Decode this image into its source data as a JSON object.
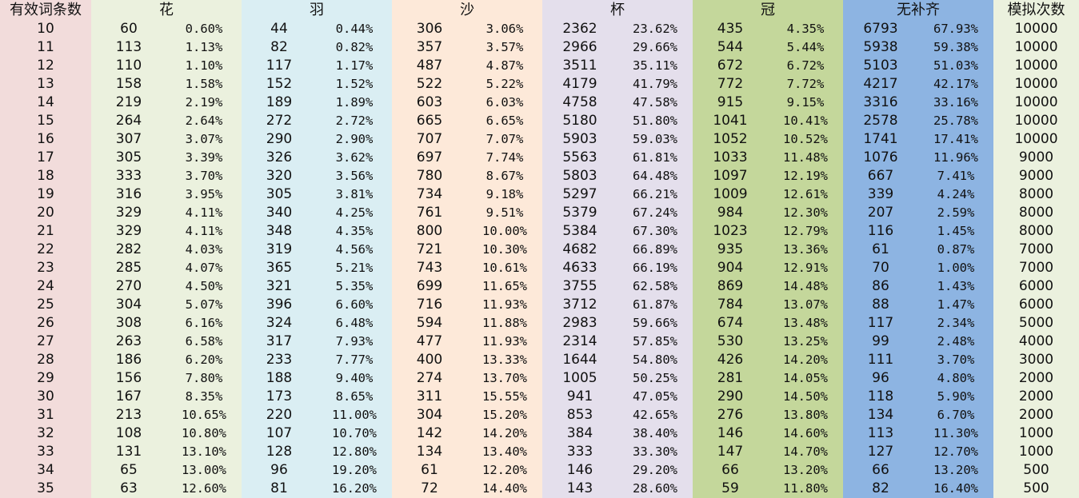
{
  "columns": {
    "entries": "有效词条数",
    "flower": "花",
    "plume": "羽",
    "sands": "沙",
    "goblet": "杯",
    "circlet": "冠",
    "none": "无补齐",
    "sims": "模拟次数"
  },
  "colors": {
    "entries": "#f2dcdb",
    "flower": "#ebf1de",
    "plume": "#daeef3",
    "sands": "#fde9d9",
    "goblet": "#e4dfec",
    "circlet": "#c4d79b",
    "none": "#8db4e2",
    "sims": "#ebf1de"
  },
  "rows": [
    [
      "10",
      "60",
      "0.60%",
      "44",
      "0.44%",
      "306",
      "3.06%",
      "2362",
      "23.62%",
      "435",
      "4.35%",
      "6793",
      "67.93%",
      "10000"
    ],
    [
      "11",
      "113",
      "1.13%",
      "82",
      "0.82%",
      "357",
      "3.57%",
      "2966",
      "29.66%",
      "544",
      "5.44%",
      "5938",
      "59.38%",
      "10000"
    ],
    [
      "12",
      "110",
      "1.10%",
      "117",
      "1.17%",
      "487",
      "4.87%",
      "3511",
      "35.11%",
      "672",
      "6.72%",
      "5103",
      "51.03%",
      "10000"
    ],
    [
      "13",
      "158",
      "1.58%",
      "152",
      "1.52%",
      "522",
      "5.22%",
      "4179",
      "41.79%",
      "772",
      "7.72%",
      "4217",
      "42.17%",
      "10000"
    ],
    [
      "14",
      "219",
      "2.19%",
      "189",
      "1.89%",
      "603",
      "6.03%",
      "4758",
      "47.58%",
      "915",
      "9.15%",
      "3316",
      "33.16%",
      "10000"
    ],
    [
      "15",
      "264",
      "2.64%",
      "272",
      "2.72%",
      "665",
      "6.65%",
      "5180",
      "51.80%",
      "1041",
      "10.41%",
      "2578",
      "25.78%",
      "10000"
    ],
    [
      "16",
      "307",
      "3.07%",
      "290",
      "2.90%",
      "707",
      "7.07%",
      "5903",
      "59.03%",
      "1052",
      "10.52%",
      "1741",
      "17.41%",
      "10000"
    ],
    [
      "17",
      "305",
      "3.39%",
      "326",
      "3.62%",
      "697",
      "7.74%",
      "5563",
      "61.81%",
      "1033",
      "11.48%",
      "1076",
      "11.96%",
      "9000"
    ],
    [
      "18",
      "333",
      "3.70%",
      "320",
      "3.56%",
      "780",
      "8.67%",
      "5803",
      "64.48%",
      "1097",
      "12.19%",
      "667",
      "7.41%",
      "9000"
    ],
    [
      "19",
      "316",
      "3.95%",
      "305",
      "3.81%",
      "734",
      "9.18%",
      "5297",
      "66.21%",
      "1009",
      "12.61%",
      "339",
      "4.24%",
      "8000"
    ],
    [
      "20",
      "329",
      "4.11%",
      "340",
      "4.25%",
      "761",
      "9.51%",
      "5379",
      "67.24%",
      "984",
      "12.30%",
      "207",
      "2.59%",
      "8000"
    ],
    [
      "21",
      "329",
      "4.11%",
      "348",
      "4.35%",
      "800",
      "10.00%",
      "5384",
      "67.30%",
      "1023",
      "12.79%",
      "116",
      "1.45%",
      "8000"
    ],
    [
      "22",
      "282",
      "4.03%",
      "319",
      "4.56%",
      "721",
      "10.30%",
      "4682",
      "66.89%",
      "935",
      "13.36%",
      "61",
      "0.87%",
      "7000"
    ],
    [
      "23",
      "285",
      "4.07%",
      "365",
      "5.21%",
      "743",
      "10.61%",
      "4633",
      "66.19%",
      "904",
      "12.91%",
      "70",
      "1.00%",
      "7000"
    ],
    [
      "24",
      "270",
      "4.50%",
      "321",
      "5.35%",
      "699",
      "11.65%",
      "3755",
      "62.58%",
      "869",
      "14.48%",
      "86",
      "1.43%",
      "6000"
    ],
    [
      "25",
      "304",
      "5.07%",
      "396",
      "6.60%",
      "716",
      "11.93%",
      "3712",
      "61.87%",
      "784",
      "13.07%",
      "88",
      "1.47%",
      "6000"
    ],
    [
      "26",
      "308",
      "6.16%",
      "324",
      "6.48%",
      "594",
      "11.88%",
      "2983",
      "59.66%",
      "674",
      "13.48%",
      "117",
      "2.34%",
      "5000"
    ],
    [
      "27",
      "263",
      "6.58%",
      "317",
      "7.93%",
      "477",
      "11.93%",
      "2314",
      "57.85%",
      "530",
      "13.25%",
      "99",
      "2.48%",
      "4000"
    ],
    [
      "28",
      "186",
      "6.20%",
      "233",
      "7.77%",
      "400",
      "13.33%",
      "1644",
      "54.80%",
      "426",
      "14.20%",
      "111",
      "3.70%",
      "3000"
    ],
    [
      "29",
      "156",
      "7.80%",
      "188",
      "9.40%",
      "274",
      "13.70%",
      "1005",
      "50.25%",
      "281",
      "14.05%",
      "96",
      "4.80%",
      "2000"
    ],
    [
      "30",
      "167",
      "8.35%",
      "173",
      "8.65%",
      "311",
      "15.55%",
      "941",
      "47.05%",
      "290",
      "14.50%",
      "118",
      "5.90%",
      "2000"
    ],
    [
      "31",
      "213",
      "10.65%",
      "220",
      "11.00%",
      "304",
      "15.20%",
      "853",
      "42.65%",
      "276",
      "13.80%",
      "134",
      "6.70%",
      "2000"
    ],
    [
      "32",
      "108",
      "10.80%",
      "107",
      "10.70%",
      "142",
      "14.20%",
      "384",
      "38.40%",
      "146",
      "14.60%",
      "113",
      "11.30%",
      "1000"
    ],
    [
      "33",
      "131",
      "13.10%",
      "128",
      "12.80%",
      "134",
      "13.40%",
      "333",
      "33.30%",
      "147",
      "14.70%",
      "127",
      "12.70%",
      "1000"
    ],
    [
      "34",
      "65",
      "13.00%",
      "96",
      "19.20%",
      "61",
      "12.20%",
      "146",
      "29.20%",
      "66",
      "13.20%",
      "66",
      "13.20%",
      "500"
    ],
    [
      "35",
      "63",
      "12.60%",
      "81",
      "16.20%",
      "72",
      "14.40%",
      "143",
      "28.60%",
      "59",
      "11.80%",
      "82",
      "16.40%",
      "500"
    ]
  ]
}
